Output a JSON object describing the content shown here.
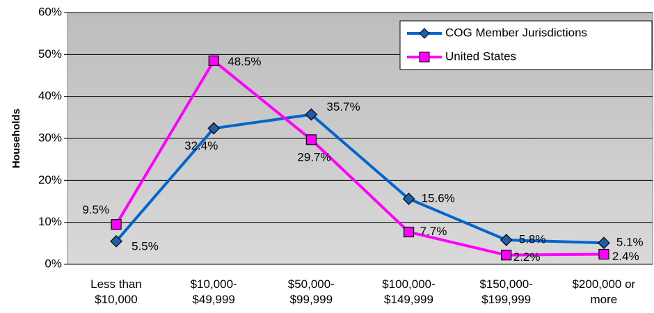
{
  "chart_data": {
    "type": "line",
    "y_label": "Households",
    "categories": [
      "Less than\n$10,000",
      "$10,000-\n$49,999",
      "$50,000-\n$99,999",
      "$100,000-\n$149,999",
      "$150,000-\n$199,999",
      "$200,000 or\nmore"
    ],
    "series": [
      {
        "name": "COG Member Jurisdictions",
        "color": "#0066cc",
        "marker_fill": "#1f5fa8",
        "marker": "diamond",
        "values": [
          5.5,
          32.4,
          35.7,
          15.6,
          5.8,
          5.1
        ],
        "value_labels": [
          "5.5%",
          "32.4%",
          "35.7%",
          "15.6%",
          "5.8%",
          "5.1%"
        ]
      },
      {
        "name": "United States",
        "color": "#ff00ff",
        "marker_fill": "#ff00ff",
        "marker": "square",
        "values": [
          9.5,
          48.5,
          29.7,
          7.7,
          2.2,
          2.4
        ],
        "value_labels": [
          "9.5%",
          "48.5%",
          "29.7%",
          "7.7%",
          "2.2%",
          "2.4%"
        ]
      }
    ],
    "ylim": [
      0,
      60
    ],
    "yticks": [
      {
        "value": 0,
        "label": "0%"
      },
      {
        "value": 10,
        "label": "10%"
      },
      {
        "value": 20,
        "label": "20%"
      },
      {
        "value": 30,
        "label": "30%"
      },
      {
        "value": 40,
        "label": "40%"
      },
      {
        "value": 50,
        "label": "50%"
      },
      {
        "value": 60,
        "label": "60%"
      }
    ],
    "grid": true,
    "legend": "upper right"
  }
}
